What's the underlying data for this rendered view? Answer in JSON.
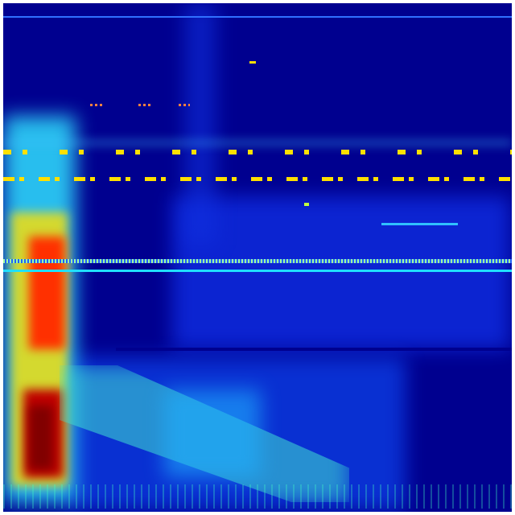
{
  "heatmap": {
    "colormap": "jet",
    "colors": {
      "background": "#00008f",
      "low": "#0000ff",
      "mid_low": "#00a0ff",
      "mid": "#40ffc0",
      "mid_high": "#ffff00",
      "high": "#ff4000",
      "max": "#800000"
    }
  }
}
